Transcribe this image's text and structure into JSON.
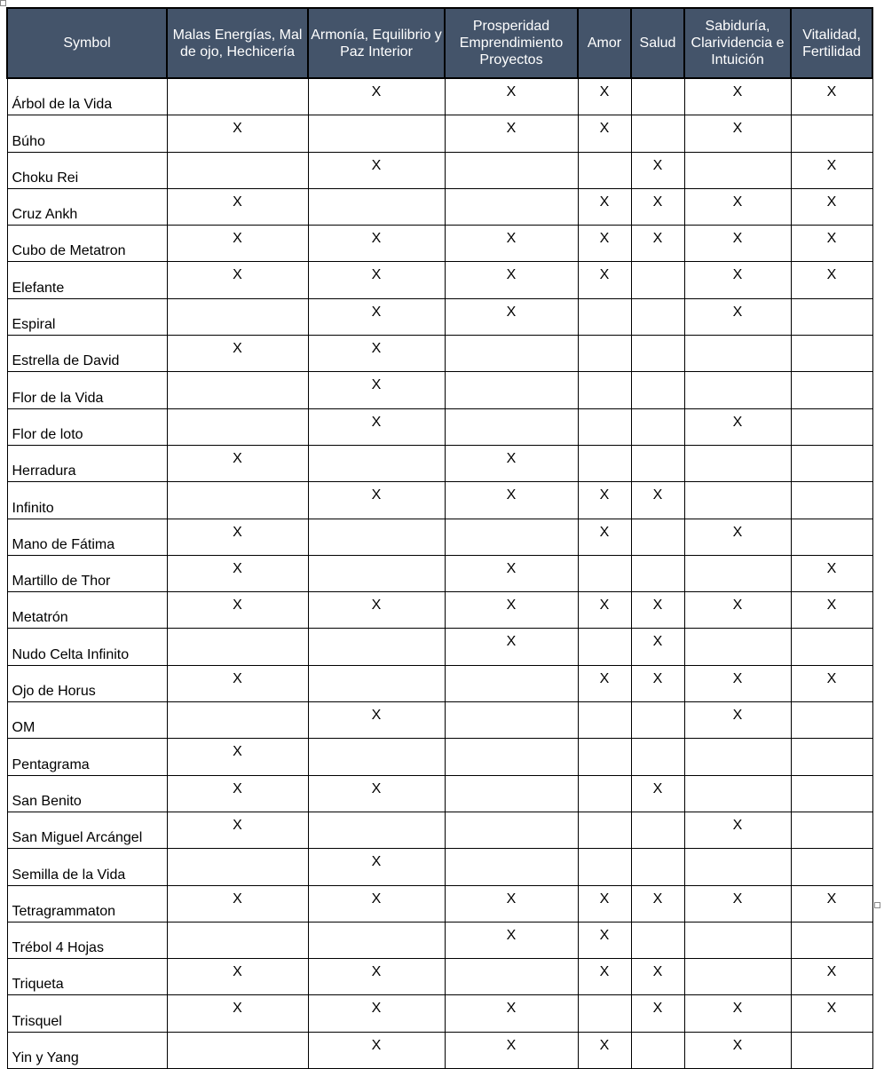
{
  "headers": [
    "Symbol",
    "Malas Energías, Mal de ojo, Hechicería",
    "Armonía, Equilibrio y Paz Interior",
    "Prosperidad Emprendimiento Proyectos",
    "Amor",
    "Salud",
    "Sabiduría, Clarividencia e Intuición",
    "Vitalidad, Fertilidad"
  ],
  "header_color": "#44546a",
  "rows": [
    {
      "name": "Árbol de la Vida",
      "marks": [
        "",
        "X",
        "X",
        "X",
        "",
        "X",
        "X"
      ]
    },
    {
      "name": "Búho",
      "marks": [
        "X",
        "",
        "X",
        "X",
        "",
        "X",
        ""
      ]
    },
    {
      "name": "Choku Rei",
      "marks": [
        "",
        "X",
        "",
        "",
        "X",
        "",
        "X"
      ]
    },
    {
      "name": "Cruz Ankh",
      "marks": [
        "X",
        "",
        "",
        "X",
        "X",
        "X",
        "X"
      ]
    },
    {
      "name": "Cubo de Metatron",
      "marks": [
        "X",
        "X",
        "X",
        "X",
        "X",
        "X",
        "X"
      ]
    },
    {
      "name": "Elefante",
      "marks": [
        "X",
        "X",
        "X",
        "X",
        "",
        "X",
        "X"
      ]
    },
    {
      "name": "Espiral",
      "marks": [
        "",
        "X",
        "X",
        "",
        "",
        "X",
        ""
      ]
    },
    {
      "name": "Estrella de David",
      "marks": [
        "X",
        "X",
        "",
        "",
        "",
        "",
        ""
      ]
    },
    {
      "name": "Flor de la Vida",
      "marks": [
        "",
        "X",
        "",
        "",
        "",
        "",
        ""
      ]
    },
    {
      "name": "Flor de loto",
      "marks": [
        "",
        "X",
        "",
        "",
        "",
        "X",
        ""
      ]
    },
    {
      "name": "Herradura",
      "marks": [
        "X",
        "",
        "X",
        "",
        "",
        "",
        ""
      ]
    },
    {
      "name": "Infinito",
      "marks": [
        "",
        "X",
        "X",
        "X",
        "X",
        "",
        ""
      ]
    },
    {
      "name": "Mano de Fátima",
      "marks": [
        "X",
        "",
        "",
        "X",
        "",
        "X",
        ""
      ]
    },
    {
      "name": "Martillo de Thor",
      "marks": [
        "X",
        "",
        "X",
        "",
        "",
        "",
        "X"
      ]
    },
    {
      "name": "Metatrón",
      "marks": [
        "X",
        "X",
        "X",
        "X",
        "X",
        "X",
        "X"
      ]
    },
    {
      "name": "Nudo Celta Infinito",
      "marks": [
        "",
        "",
        "X",
        "",
        "X",
        "",
        ""
      ]
    },
    {
      "name": "Ojo de Horus",
      "marks": [
        "X",
        "",
        "",
        "X",
        "X",
        "X",
        "X"
      ]
    },
    {
      "name": "OM",
      "marks": [
        "",
        "X",
        "",
        "",
        "",
        "X",
        ""
      ]
    },
    {
      "name": "Pentagrama",
      "marks": [
        "X",
        "",
        "",
        "",
        "",
        "",
        ""
      ]
    },
    {
      "name": "San Benito",
      "marks": [
        "X",
        "X",
        "",
        "",
        "X",
        "",
        ""
      ]
    },
    {
      "name": "San Miguel Arcángel",
      "marks": [
        "X",
        "",
        "",
        "",
        "",
        "X",
        ""
      ]
    },
    {
      "name": "Semilla de la Vida",
      "marks": [
        "",
        "X",
        "",
        "",
        "",
        "",
        ""
      ]
    },
    {
      "name": "Tetragrammaton",
      "marks": [
        "X",
        "X",
        "X",
        "X",
        "X",
        "X",
        "X"
      ]
    },
    {
      "name": "Trébol 4 Hojas",
      "marks": [
        "",
        "",
        "X",
        "X",
        "",
        "",
        ""
      ]
    },
    {
      "name": "Triqueta",
      "marks": [
        "X",
        "X",
        "",
        "X",
        "X",
        "",
        "X"
      ]
    },
    {
      "name": "Trisquel",
      "marks": [
        "X",
        "X",
        "X",
        "",
        "X",
        "X",
        "X"
      ]
    },
    {
      "name": "Yin y Yang",
      "marks": [
        "",
        "X",
        "X",
        "X",
        "",
        "X",
        ""
      ]
    }
  ]
}
